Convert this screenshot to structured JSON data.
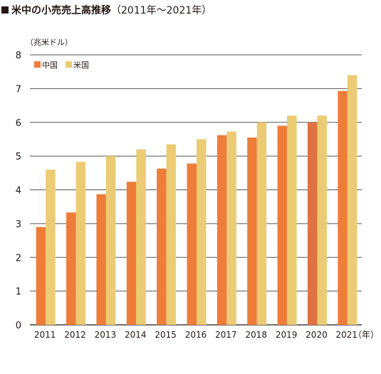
{
  "header": {
    "title": "米中の小売売上高推移",
    "subtitle": "（2011年～2021年）"
  },
  "chart_data": {
    "type": "bar",
    "title": "米中の小売売上高推移（2011年～2021年）",
    "ylabel": "（兆米ドル）",
    "xlabel": "（年）",
    "ylim": [
      0,
      8
    ],
    "yticks": [
      "0",
      "1",
      "2",
      "3",
      "4",
      "5",
      "6",
      "7",
      "8"
    ],
    "categories": [
      "2011",
      "2012",
      "2013",
      "2014",
      "2015",
      "2016",
      "2017",
      "2018",
      "2019",
      "2020",
      "2021"
    ],
    "series": [
      {
        "name": "中国",
        "color": "#ee7d3a",
        "values": [
          2.9,
          3.33,
          3.87,
          4.24,
          4.63,
          4.78,
          5.62,
          5.55,
          5.9,
          6.0,
          6.93
        ]
      },
      {
        "name": "米国",
        "color": "#ebcb74",
        "values": [
          4.6,
          4.83,
          5.0,
          5.2,
          5.35,
          5.5,
          5.73,
          6.0,
          6.2,
          6.2,
          7.4
        ]
      }
    ],
    "highlight": {
      "series": "中国",
      "category": "2020",
      "color": "#df7142"
    },
    "grid": true,
    "legend_position": "top-left"
  }
}
